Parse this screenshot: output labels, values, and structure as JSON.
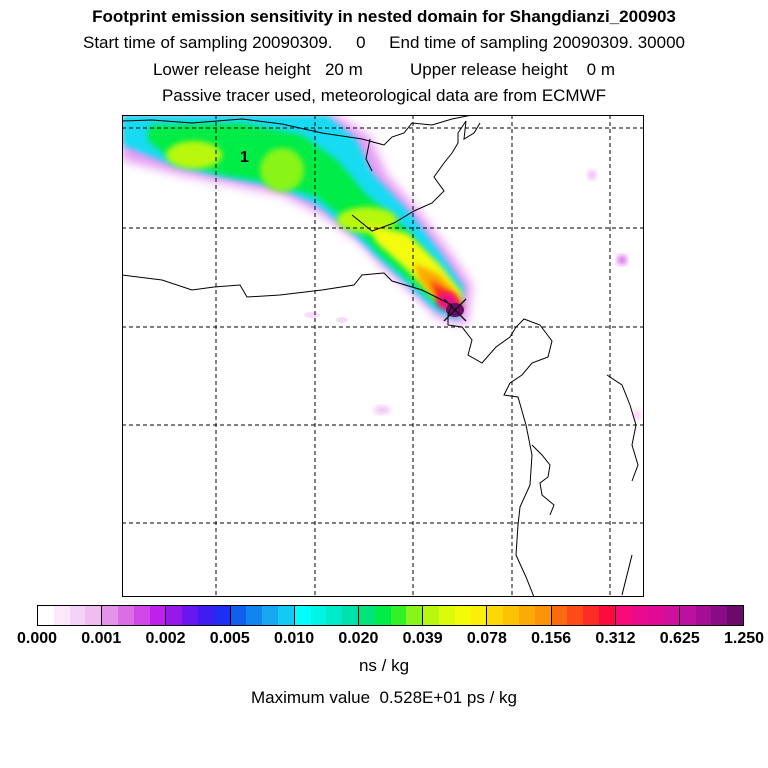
{
  "header": {
    "title": "Footprint emission sensitivity in nested domain for Shangdianzi_200903",
    "sampling_line": "Start time of sampling 20090309.     0     End time of sampling 20090309. 30000",
    "height_line": "Lower release height   20 m          Upper release height    0 m",
    "tracer_line": "Passive tracer used, meteorological data are from ECMWF"
  },
  "map": {
    "label": "1",
    "release_marker": "x-marker"
  },
  "colorbar": {
    "ticks": [
      "0.000",
      "0.001",
      "0.002",
      "0.005",
      "0.010",
      "0.020",
      "0.039",
      "0.078",
      "0.156",
      "0.312",
      "0.625",
      "1.250"
    ],
    "groups": [
      [
        "#ffffff",
        "#fbe9fb",
        "#f5d3f6",
        "#efbdf0"
      ],
      [
        "#e592ea",
        "#db6ee6",
        "#cf48e8",
        "#c020ee"
      ],
      [
        "#9818ea",
        "#6a16ee",
        "#3f1cf2",
        "#1e2ef5"
      ],
      [
        "#1060f0",
        "#1085f0",
        "#18a8f2",
        "#12cbf2"
      ],
      [
        "#00ffff",
        "#00f5e3",
        "#00ebc8",
        "#00e2ad"
      ],
      [
        "#00e57c",
        "#00ec47",
        "#33f028",
        "#88f518"
      ],
      [
        "#b8f80e",
        "#dcfb0a",
        "#f4fb08",
        "#fbee08"
      ],
      [
        "#fcd906",
        "#fcc206",
        "#fcab06",
        "#fc9308"
      ],
      [
        "#fc6a10",
        "#fc4a18",
        "#fc2b24",
        "#fc0c3c"
      ],
      [
        "#f80a78",
        "#ec0a8c",
        "#e00a96",
        "#d0109c"
      ],
      [
        "#bc10a0",
        "#a40e96",
        "#8a0c84",
        "#6c0a6a"
      ]
    ],
    "units": "ns / kg",
    "max_value": "Maximum value  0.528E+01 ps / kg"
  }
}
